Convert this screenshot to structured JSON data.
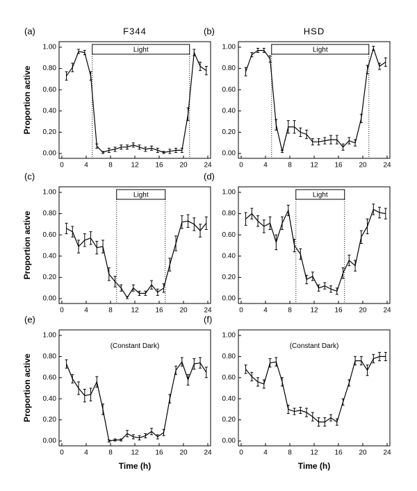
{
  "chart_data": [
    {
      "type": "line",
      "panel": "(a)",
      "title": "F344",
      "y_label": "Proportion active",
      "light_period": {
        "label": "Light",
        "start": 5,
        "end": 21
      },
      "x": [
        0.75,
        1.75,
        2.75,
        3.75,
        4.75,
        5.75,
        6.75,
        7.75,
        8.75,
        9.75,
        10.75,
        11.75,
        12.75,
        13.75,
        14.75,
        15.75,
        16.75,
        17.75,
        18.75,
        19.75,
        20.75,
        21.75,
        22.75,
        23.75
      ],
      "values": [
        0.73,
        0.81,
        0.96,
        0.95,
        0.73,
        0.07,
        0.01,
        0.03,
        0.04,
        0.06,
        0.06,
        0.08,
        0.06,
        0.04,
        0.05,
        0.03,
        0.01,
        0.02,
        0.03,
        0.03,
        0.37,
        0.95,
        0.82,
        0.78
      ],
      "errors": [
        0.04,
        0.04,
        0.02,
        0.02,
        0.04,
        0.02,
        0.01,
        0.02,
        0.02,
        0.02,
        0.02,
        0.02,
        0.02,
        0.02,
        0.02,
        0.02,
        0.01,
        0.02,
        0.02,
        0.02,
        0.06,
        0.03,
        0.04,
        0.04
      ],
      "color": "#000000",
      "xlim": [
        0,
        24
      ],
      "xticks": [
        0,
        4,
        8,
        12,
        16,
        20,
        24
      ],
      "ylim": [
        0,
        1
      ],
      "yticks": [
        {
          "value": 0,
          "label": "0.00"
        },
        {
          "value": 0.2,
          "label": "0.20"
        },
        {
          "value": 0.4,
          "label": "0.40"
        },
        {
          "value": 0.6,
          "label": "0.60"
        },
        {
          "value": 0.8,
          "label": "0.80"
        },
        {
          "value": 1,
          "label": "1.00"
        }
      ]
    },
    {
      "type": "line",
      "panel": "(b)",
      "title": "HSD",
      "light_period": {
        "label": "Light",
        "start": 5,
        "end": 21
      },
      "x": [
        0.75,
        1.75,
        2.75,
        3.75,
        4.75,
        5.75,
        6.75,
        7.75,
        8.75,
        9.75,
        10.75,
        11.75,
        12.75,
        13.75,
        14.75,
        15.75,
        16.75,
        17.75,
        18.75,
        19.75,
        20.75,
        21.75,
        22.75,
        23.75
      ],
      "values": [
        0.77,
        0.93,
        0.97,
        0.97,
        0.89,
        0.27,
        0.02,
        0.25,
        0.25,
        0.2,
        0.18,
        0.11,
        0.11,
        0.12,
        0.13,
        0.13,
        0.06,
        0.12,
        0.1,
        0.33,
        0.79,
        0.99,
        0.82,
        0.86
      ],
      "errors": [
        0.04,
        0.02,
        0.02,
        0.02,
        0.03,
        0.05,
        0.01,
        0.06,
        0.06,
        0.04,
        0.04,
        0.03,
        0.03,
        0.03,
        0.04,
        0.04,
        0.03,
        0.03,
        0.03,
        0.04,
        0.04,
        0.02,
        0.03,
        0.04
      ],
      "color": "#000000",
      "xlim": [
        0,
        24
      ],
      "xticks": [
        0,
        4,
        8,
        12,
        16,
        20,
        24
      ],
      "ylim": [
        0,
        1
      ],
      "yticks": [
        {
          "value": 0,
          "label": "0.00"
        },
        {
          "value": 0.2,
          "label": "0.20"
        },
        {
          "value": 0.4,
          "label": "0.40"
        },
        {
          "value": 0.6,
          "label": "0.60"
        },
        {
          "value": 0.8,
          "label": "0.80"
        },
        {
          "value": 1,
          "label": "1.00"
        }
      ]
    },
    {
      "type": "line",
      "panel": "(c)",
      "y_label": "Proportion active",
      "light_period": {
        "label": "Light",
        "start": 9,
        "end": 17
      },
      "x": [
        0.75,
        1.75,
        2.75,
        3.75,
        4.75,
        5.75,
        6.75,
        7.75,
        8.75,
        9.75,
        10.75,
        11.75,
        12.75,
        13.75,
        14.75,
        15.75,
        16.75,
        17.75,
        18.75,
        19.75,
        20.75,
        21.75,
        22.75,
        23.75
      ],
      "values": [
        0.66,
        0.63,
        0.49,
        0.55,
        0.57,
        0.48,
        0.49,
        0.23,
        0.16,
        0.1,
        0.01,
        0.1,
        0.05,
        0.05,
        0.13,
        0.06,
        0.1,
        0.32,
        0.52,
        0.72,
        0.73,
        0.7,
        0.64,
        0.71
      ],
      "errors": [
        0.05,
        0.05,
        0.06,
        0.06,
        0.06,
        0.06,
        0.06,
        0.06,
        0.05,
        0.03,
        0.01,
        0.03,
        0.02,
        0.02,
        0.04,
        0.03,
        0.04,
        0.06,
        0.07,
        0.06,
        0.06,
        0.06,
        0.06,
        0.06
      ],
      "color": "#000000",
      "xlim": [
        0,
        24
      ],
      "xticks": [
        0,
        4,
        8,
        12,
        16,
        20,
        24
      ],
      "ylim": [
        0,
        1
      ],
      "yticks": [
        {
          "value": 0,
          "label": "0.00"
        },
        {
          "value": 0.2,
          "label": "0.20"
        },
        {
          "value": 0.4,
          "label": "0.40"
        },
        {
          "value": 0.6,
          "label": "0.60"
        },
        {
          "value": 0.8,
          "label": "0.80"
        },
        {
          "value": 1,
          "label": "1.00"
        }
      ]
    },
    {
      "type": "line",
      "panel": "(d)",
      "light_period": {
        "label": "Light",
        "start": 9,
        "end": 17
      },
      "x": [
        0.75,
        1.75,
        2.75,
        3.75,
        4.75,
        5.75,
        6.75,
        7.75,
        8.75,
        9.75,
        10.75,
        11.75,
        12.75,
        13.75,
        14.75,
        15.75,
        16.75,
        17.75,
        18.75,
        19.75,
        20.75,
        21.75,
        22.75,
        23.75
      ],
      "values": [
        0.75,
        0.8,
        0.73,
        0.68,
        0.71,
        0.53,
        0.71,
        0.83,
        0.5,
        0.42,
        0.18,
        0.21,
        0.1,
        0.12,
        0.09,
        0.07,
        0.24,
        0.36,
        0.31,
        0.58,
        0.68,
        0.84,
        0.81,
        0.8
      ],
      "errors": [
        0.06,
        0.05,
        0.05,
        0.06,
        0.06,
        0.07,
        0.06,
        0.05,
        0.06,
        0.05,
        0.04,
        0.04,
        0.03,
        0.03,
        0.03,
        0.03,
        0.05,
        0.05,
        0.05,
        0.06,
        0.07,
        0.05,
        0.05,
        0.05
      ],
      "color": "#000000",
      "xlim": [
        0,
        24
      ],
      "xticks": [
        0,
        4,
        8,
        12,
        16,
        20,
        24
      ],
      "ylim": [
        0,
        1
      ],
      "yticks": [
        {
          "value": 0,
          "label": "0.00"
        },
        {
          "value": 0.2,
          "label": "0.20"
        },
        {
          "value": 0.4,
          "label": "0.40"
        },
        {
          "value": 0.6,
          "label": "0.60"
        },
        {
          "value": 0.8,
          "label": "0.80"
        },
        {
          "value": 1,
          "label": "1.00"
        }
      ]
    },
    {
      "type": "line",
      "panel": "(e)",
      "y_label": "Proportion active",
      "x_label": "Time (h)",
      "annotation": "(Constant Dark)",
      "x": [
        0.75,
        1.75,
        2.75,
        3.75,
        4.75,
        5.75,
        6.75,
        7.75,
        8.75,
        9.75,
        10.75,
        11.75,
        12.75,
        13.75,
        14.75,
        15.75,
        16.75,
        17.75,
        18.75,
        19.75,
        20.75,
        21.75,
        22.75,
        23.75
      ],
      "values": [
        0.73,
        0.59,
        0.5,
        0.43,
        0.44,
        0.56,
        0.3,
        0.0,
        0.01,
        0.01,
        0.07,
        0.04,
        0.03,
        0.05,
        0.09,
        0.04,
        0.08,
        0.4,
        0.67,
        0.75,
        0.58,
        0.73,
        0.74,
        0.65
      ],
      "errors": [
        0.04,
        0.04,
        0.06,
        0.06,
        0.06,
        0.05,
        0.05,
        0.01,
        0.01,
        0.01,
        0.03,
        0.02,
        0.02,
        0.02,
        0.03,
        0.02,
        0.03,
        0.04,
        0.04,
        0.04,
        0.05,
        0.05,
        0.05,
        0.05
      ],
      "color": "#000000",
      "xlim": [
        0,
        24
      ],
      "xticks": [
        0,
        4,
        8,
        12,
        16,
        20,
        24
      ],
      "ylim": [
        0,
        1
      ],
      "yticks": [
        {
          "value": 0,
          "label": "0.00"
        },
        {
          "value": 0.2,
          "label": "0.20"
        },
        {
          "value": 0.4,
          "label": "0.40"
        },
        {
          "value": 0.6,
          "label": "0.60"
        },
        {
          "value": 0.8,
          "label": "0.80"
        },
        {
          "value": 1,
          "label": "1.00"
        }
      ]
    },
    {
      "type": "line",
      "panel": "(f)",
      "x_label": "Time (h)",
      "annotation": "(Constant Dark)",
      "x": [
        0.75,
        1.75,
        2.75,
        3.75,
        4.75,
        5.75,
        6.75,
        7.75,
        8.75,
        9.75,
        10.75,
        11.75,
        12.75,
        13.75,
        14.75,
        15.75,
        16.75,
        17.75,
        18.75,
        19.75,
        20.75,
        21.75,
        22.75,
        23.75
      ],
      "values": [
        0.68,
        0.61,
        0.56,
        0.54,
        0.74,
        0.75,
        0.56,
        0.3,
        0.28,
        0.29,
        0.27,
        0.23,
        0.18,
        0.18,
        0.22,
        0.18,
        0.37,
        0.55,
        0.76,
        0.76,
        0.67,
        0.78,
        0.8,
        0.8
      ],
      "errors": [
        0.04,
        0.04,
        0.04,
        0.04,
        0.04,
        0.04,
        0.04,
        0.04,
        0.03,
        0.03,
        0.04,
        0.04,
        0.04,
        0.04,
        0.03,
        0.03,
        0.03,
        0.03,
        0.04,
        0.04,
        0.05,
        0.04,
        0.04,
        0.04
      ],
      "color": "#000000",
      "xlim": [
        0,
        24
      ],
      "xticks": [
        0,
        4,
        8,
        12,
        16,
        20,
        24
      ],
      "ylim": [
        0,
        1
      ],
      "yticks": [
        {
          "value": 0,
          "label": "0.00"
        },
        {
          "value": 0.2,
          "label": "0.20"
        },
        {
          "value": 0.4,
          "label": "0.40"
        },
        {
          "value": 0.6,
          "label": "0.60"
        },
        {
          "value": 0.8,
          "label": "0.80"
        },
        {
          "value": 1,
          "label": "1.00"
        }
      ]
    }
  ]
}
